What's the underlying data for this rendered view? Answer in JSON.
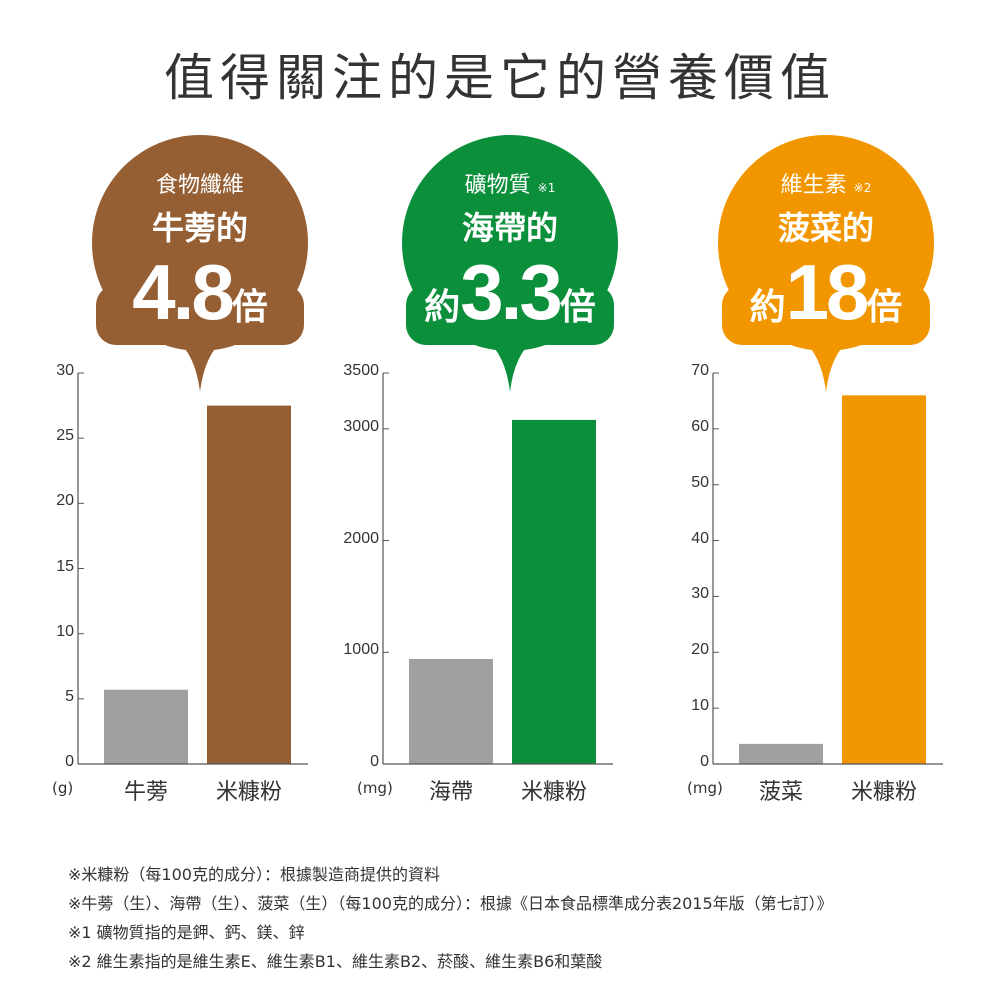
{
  "title": "值得關注的是它的營養價值",
  "colors": {
    "brown": "#955f33",
    "green": "#0b8f3b",
    "orange": "#f29600",
    "gray": "#a0a0a0",
    "axis": "#555555"
  },
  "bubbles": [
    {
      "category": "食物纖維",
      "note": "",
      "item": "牛蒡的",
      "prefix": "",
      "value": "4.8",
      "unit": "倍"
    },
    {
      "category": "礦物質",
      "note": "※1",
      "item": "海帶的",
      "prefix": "約",
      "value": "3.3",
      "unit": "倍"
    },
    {
      "category": "維生素",
      "note": "※2",
      "item": "菠菜的",
      "prefix": "約",
      "value": "18",
      "unit": "倍"
    }
  ],
  "chart_data": [
    {
      "type": "bar",
      "unit": "(g)",
      "categories": [
        "牛蒡",
        "米糠粉"
      ],
      "values": [
        5.7,
        27.5
      ],
      "ylim": [
        0,
        30
      ],
      "ticks": [
        "0",
        "5",
        "10",
        "15",
        "20",
        "25",
        "30"
      ],
      "tickvals": [
        0,
        5,
        10,
        15,
        20,
        25,
        30
      ],
      "colors": [
        "gray",
        "brown"
      ]
    },
    {
      "type": "bar",
      "unit": "(mg)",
      "categories": [
        "海帶",
        "米糠粉"
      ],
      "values": [
        940,
        3080
      ],
      "ylim": [
        0,
        3500
      ],
      "ticks": [
        "0",
        "1000",
        "2000",
        "3000",
        "3500"
      ],
      "tickvals": [
        0,
        1000,
        2000,
        3000,
        3500
      ],
      "colors": [
        "gray",
        "green"
      ]
    },
    {
      "type": "bar",
      "unit": "(mg)",
      "categories": [
        "菠菜",
        "米糠粉"
      ],
      "values": [
        3.6,
        66
      ],
      "ylim": [
        0,
        70
      ],
      "ticks": [
        "0",
        "10",
        "20",
        "30",
        "40",
        "50",
        "60",
        "70"
      ],
      "tickvals": [
        0,
        10,
        20,
        30,
        40,
        50,
        60,
        70
      ],
      "colors": [
        "gray",
        "orange"
      ]
    }
  ],
  "notes": [
    "※米糠粉（每100克的成分）：根據製造商提供的資料",
    "※牛蒡（生）、海帶（生）、菠菜（生）（每100克的成分）：根據《日本食品標準成分表2015年版（第七訂）》",
    "※1 礦物質指的是鉀、鈣、鎂、鋅",
    "※2 維生素指的是維生素E、維生素B1、維生素B2、菸酸、維生素B6和葉酸"
  ]
}
